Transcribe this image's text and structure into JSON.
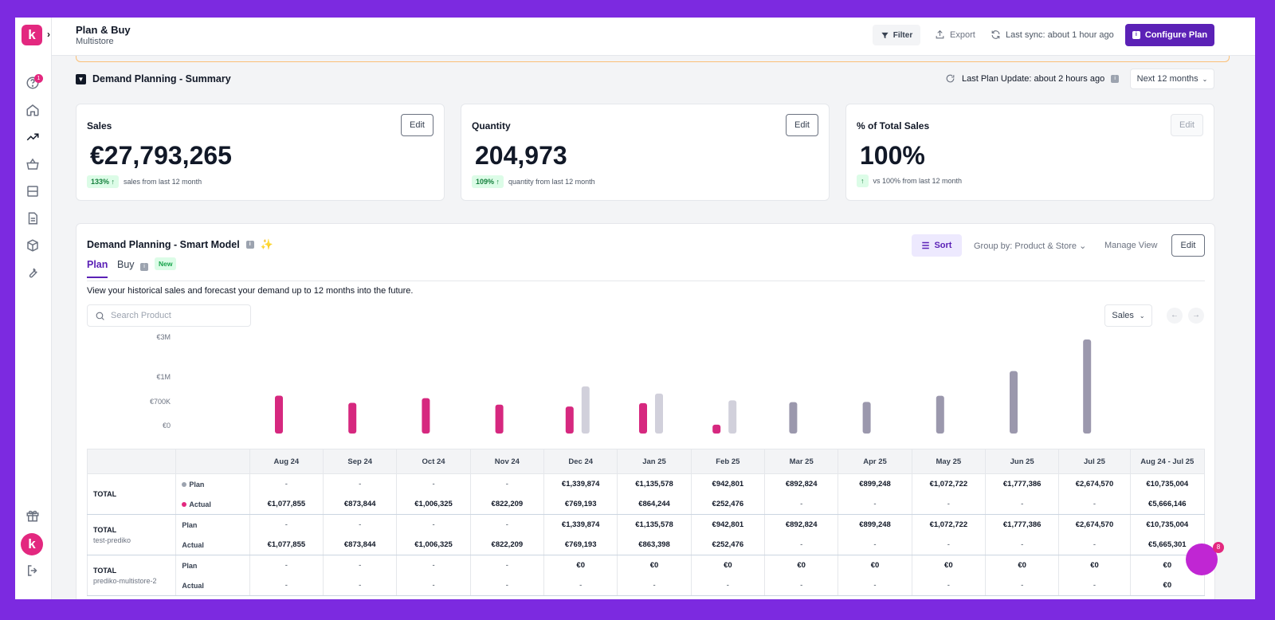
{
  "app": {
    "logo_letter": "k",
    "avatar_letter": "k",
    "notification_count": "1",
    "chat_badge": "8"
  },
  "header": {
    "title": "Plan & Buy",
    "subtitle": "Multistore",
    "filter_label": "Filter",
    "export_label": "Export",
    "sync_text": "Last sync: about 1 hour ago",
    "configure_label": "Configure Plan"
  },
  "summary": {
    "title": "Demand Planning - Summary",
    "last_update": "Last Plan Update: about 2 hours ago",
    "period": "Next 12 months",
    "cards": [
      {
        "label": "Sales",
        "value": "€27,793,265",
        "pill": "133%",
        "note": "sales from last 12 month",
        "edit": "Edit"
      },
      {
        "label": "Quantity",
        "value": "204,973",
        "pill": "109%",
        "note": "quantity from last 12 month",
        "edit": "Edit"
      },
      {
        "label": "% of Total Sales",
        "value": "100%",
        "pill": "",
        "note": "vs 100% from last 12 month",
        "edit": "Edit"
      }
    ]
  },
  "smart_model": {
    "title": "Demand Planning - Smart Model",
    "sort_label": "Sort",
    "group_by": "Group by: Product & Store",
    "manage_view": "Manage View",
    "edit_label": "Edit",
    "tabs": {
      "plan": "Plan",
      "buy": "Buy",
      "new_badge": "New"
    },
    "description": "View your historical sales and forecast your demand up to 12 months into the future.",
    "search_placeholder": "Search Product",
    "metric": "Sales"
  },
  "chart_data": {
    "type": "bar",
    "y_ticks": [
      "€3M",
      "€1M",
      "€700K",
      "€0"
    ],
    "categories": [
      "Aug 24",
      "Sep 24",
      "Oct 24",
      "Nov 24",
      "Dec 24",
      "Jan 25",
      "Feb 25",
      "Mar 25",
      "Apr 25",
      "May 25",
      "Jun 25",
      "Jul 25"
    ],
    "series": [
      {
        "name": "Actual",
        "color": "#d6287f",
        "values": [
          1077855,
          873844,
          1006325,
          822209,
          769193,
          864244,
          252476,
          null,
          null,
          null,
          null,
          null
        ]
      },
      {
        "name": "Plan",
        "color": "#9b98ad",
        "values": [
          null,
          null,
          null,
          null,
          1339874,
          1135578,
          942801,
          892824,
          899248,
          1072722,
          1777386,
          2674570
        ]
      }
    ]
  },
  "table": {
    "columns": [
      "",
      "",
      "Aug 24",
      "Sep 24",
      "Oct 24",
      "Nov 24",
      "Dec 24",
      "Jan 25",
      "Feb 25",
      "Mar 25",
      "Apr 25",
      "May 25",
      "Jun 25",
      "Jul 25",
      "Aug 24 - Jul 25"
    ],
    "groups": [
      {
        "name": "TOTAL",
        "sub": "",
        "rows": [
          {
            "metric": "Plan",
            "dot": "#9ca3af",
            "cells": [
              "-",
              "-",
              "-",
              "-",
              "€1,339,874",
              "€1,135,578",
              "€942,801",
              "€892,824",
              "€899,248",
              "€1,072,722",
              "€1,777,386",
              "€2,674,570",
              "€10,735,004"
            ]
          },
          {
            "metric": "Actual",
            "dot": "#e3287f",
            "cells": [
              "€1,077,855",
              "€873,844",
              "€1,006,325",
              "€822,209",
              "€769,193",
              "€864,244",
              "€252,476",
              "-",
              "-",
              "-",
              "-",
              "-",
              "€5,666,146"
            ]
          }
        ]
      },
      {
        "name": "TOTAL",
        "sub": "test-prediko",
        "rows": [
          {
            "metric": "Plan",
            "dot": "",
            "cells": [
              "-",
              "-",
              "-",
              "-",
              "€1,339,874",
              "€1,135,578",
              "€942,801",
              "€892,824",
              "€899,248",
              "€1,072,722",
              "€1,777,386",
              "€2,674,570",
              "€10,735,004"
            ]
          },
          {
            "metric": "Actual",
            "dot": "",
            "cells": [
              "€1,077,855",
              "€873,844",
              "€1,006,325",
              "€822,209",
              "€769,193",
              "€863,398",
              "€252,476",
              "-",
              "-",
              "-",
              "-",
              "-",
              "€5,665,301"
            ]
          }
        ]
      },
      {
        "name": "TOTAL",
        "sub": "prediko-multistore-2",
        "rows": [
          {
            "metric": "Plan",
            "dot": "",
            "cells": [
              "-",
              "-",
              "-",
              "-",
              "€0",
              "€0",
              "€0",
              "€0",
              "€0",
              "€0",
              "€0",
              "€0",
              "€0"
            ]
          },
          {
            "metric": "Actual",
            "dot": "",
            "cells": [
              "-",
              "-",
              "-",
              "-",
              "-",
              "-",
              "-",
              "-",
              "-",
              "-",
              "-",
              "-",
              "€0"
            ]
          }
        ]
      }
    ]
  }
}
